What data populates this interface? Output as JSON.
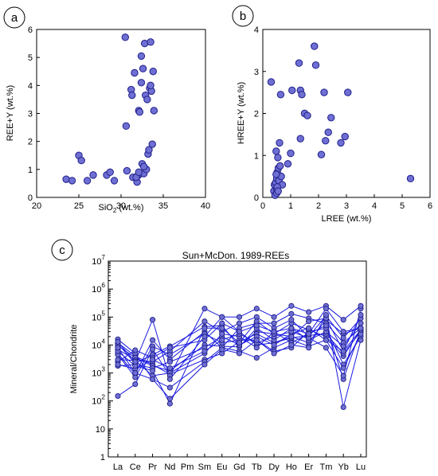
{
  "panels": {
    "a": {
      "badge": "a"
    },
    "b": {
      "badge": "b"
    },
    "c": {
      "badge": "c"
    }
  },
  "chart_data": [
    {
      "id": "a",
      "type": "scatter",
      "title": "",
      "xlabel": "SiO",
      "xlabel_sub": "2",
      "xlabel_suffix": " (wt.%)",
      "ylabel": "REE+Y (wt.%)",
      "xlim": [
        20,
        40
      ],
      "ylim": [
        0,
        6
      ],
      "xticks": [
        20,
        25,
        30,
        35,
        40
      ],
      "yticks": [
        0,
        1,
        2,
        3,
        4,
        5,
        6
      ],
      "grid": false,
      "x": [
        23.5,
        24.2,
        25.0,
        25.3,
        26.0,
        26.7,
        28.3,
        28.7,
        29.2,
        30.5,
        30.6,
        30.7,
        31.2,
        31.3,
        31.4,
        31.6,
        31.9,
        32.0,
        32.1,
        32.2,
        32.3,
        32.4,
        32.5,
        32.6,
        32.7,
        32.8,
        32.9,
        33.0,
        33.1,
        33.2,
        33.3,
        33.4,
        33.5,
        33.6,
        33.7,
        33.8,
        33.9,
        32.4,
        32.7,
        33.5,
        31.8,
        32.1
      ],
      "y": [
        0.65,
        0.6,
        1.5,
        1.32,
        0.6,
        0.8,
        0.8,
        0.9,
        0.6,
        5.72,
        2.55,
        0.95,
        3.85,
        3.65,
        0.72,
        4.45,
        0.55,
        0.78,
        3.1,
        3.05,
        0.85,
        5.05,
        1.2,
        4.6,
        0.85,
        5.5,
        3.65,
        1.0,
        3.5,
        1.55,
        1.7,
        3.9,
        5.55,
        3.8,
        1.9,
        4.5,
        3.1,
        4.1,
        1.1,
        4.0,
        0.72,
        0.9
      ]
    },
    {
      "id": "b",
      "type": "scatter",
      "title": "",
      "xlabel": "LREE (wt.%)",
      "ylabel": "HREE+Y (wt.%)",
      "xlim": [
        0,
        6
      ],
      "ylim": [
        0,
        4
      ],
      "xticks": [
        0,
        1,
        2,
        3,
        4,
        5,
        6
      ],
      "yticks": [
        0,
        1,
        2,
        3,
        4
      ],
      "grid": false,
      "x": [
        0.3,
        0.4,
        0.42,
        0.44,
        0.46,
        0.48,
        0.5,
        0.5,
        0.5,
        0.52,
        0.54,
        0.56,
        0.58,
        0.6,
        0.62,
        0.64,
        0.66,
        0.7,
        0.52,
        0.48,
        0.55,
        0.9,
        1.0,
        1.05,
        1.3,
        1.35,
        1.4,
        1.5,
        1.6,
        1.85,
        1.9,
        2.1,
        2.2,
        2.25,
        2.35,
        2.45,
        2.8,
        2.95,
        3.05,
        5.3,
        1.35
      ],
      "y": [
        2.75,
        0.15,
        0.3,
        0.05,
        0.35,
        1.1,
        0.2,
        0.45,
        0.1,
        0.6,
        0.95,
        0.7,
        0.4,
        1.3,
        0.75,
        2.45,
        0.5,
        0.3,
        0.25,
        0.55,
        0.15,
        0.8,
        1.05,
        2.55,
        3.2,
        2.55,
        2.45,
        2.0,
        1.95,
        3.6,
        3.15,
        1.02,
        2.5,
        1.35,
        1.55,
        1.9,
        1.3,
        1.45,
        2.5,
        0.45,
        1.4
      ]
    },
    {
      "id": "c",
      "type": "line",
      "title": "Sun+McDon. 1989-REEs",
      "xlabel": "",
      "ylabel": "Mineral/Chondrite",
      "yscale": "log",
      "ylim": [
        1,
        10000000
      ],
      "yticks": [
        {
          "base": "10",
          "exp": "7",
          "value": 10000000
        },
        {
          "base": "10",
          "exp": "6",
          "value": 1000000
        },
        {
          "base": "10",
          "exp": "5",
          "value": 100000
        },
        {
          "base": "10",
          "exp": "4",
          "value": 10000
        },
        {
          "base": "10",
          "exp": "3",
          "value": 1000
        },
        {
          "base": "10",
          "exp": "2",
          "value": 100
        },
        {
          "base": "10",
          "exp": "",
          "value": 10
        },
        {
          "base": "1",
          "exp": "",
          "value": 1
        }
      ],
      "categories": [
        "La",
        "Ce",
        "Pr",
        "Nd",
        "Pm",
        "Sm",
        "Eu",
        "Gd",
        "Tb",
        "Dy",
        "Ho",
        "Er",
        "Tm",
        "Yb",
        "Lu"
      ],
      "grid": false,
      "series": [
        {
          "values": [
            11000,
            2200,
            4500,
            9000,
            null,
            45000,
            50000,
            9000,
            30000,
            25000,
            60000,
            35000,
            20000,
            4000,
            35000
          ]
        },
        {
          "values": [
            12000,
            4000,
            2000,
            900,
            null,
            3000,
            5000,
            13000,
            25000,
            12000,
            20000,
            12000,
            80000,
            25000,
            40000
          ]
        },
        {
          "values": [
            16000,
            5000,
            600,
            300,
            null,
            2500,
            8000,
            6000,
            3500,
            8000,
            15000,
            9000,
            15000,
            6000,
            35000
          ]
        },
        {
          "values": [
            7000,
            3000,
            2500,
            6000,
            null,
            70000,
            30000,
            60000,
            100000,
            40000,
            80000,
            20000,
            110000,
            18000,
            90000
          ]
        },
        {
          "values": [
            5000,
            900,
            15000,
            3000,
            null,
            30000,
            8000,
            40000,
            60000,
            60000,
            130000,
            90000,
            60000,
            12000,
            40000
          ]
        },
        {
          "values": [
            2500,
            6500,
            3500,
            8000,
            null,
            15000,
            60000,
            30000,
            10000,
            12000,
            18000,
            22000,
            25000,
            5000,
            30000
          ]
        },
        {
          "values": [
            9500,
            3500,
            1800,
            1200,
            null,
            10000,
            9000,
            8500,
            40000,
            15000,
            40000,
            15000,
            30000,
            9000,
            60000
          ]
        },
        {
          "values": [
            4500,
            700,
            9000,
            4500,
            null,
            25000,
            12000,
            15000,
            15000,
            6000,
            8000,
            30000,
            40000,
            2000,
            20000
          ]
        },
        {
          "values": [
            1800,
            2000,
            1500,
            2500,
            null,
            8000,
            20000,
            10000,
            20000,
            10000,
            25000,
            40000,
            15000,
            1500,
            25000
          ]
        },
        {
          "values": [
            3000,
            2800,
            800,
            1000,
            null,
            5000,
            25000,
            20000,
            8000,
            30000,
            12000,
            25000,
            50000,
            600,
            35000
          ]
        },
        {
          "values": [
            2000,
            1400,
            3000,
            1500,
            null,
            6000,
            15000,
            25000,
            12000,
            20000,
            30000,
            18000,
            8000,
            800,
            200000
          ]
        },
        {
          "values": [
            6000,
            1800,
            1200,
            80,
            null,
            40000,
            40000,
            12000,
            70000,
            25000,
            20000,
            70000,
            90000,
            6000,
            120000
          ]
        },
        {
          "values": [
            8000,
            1000,
            600,
            120,
            null,
            2000,
            7000,
            5000,
            15000,
            5000,
            10000,
            8000,
            120000,
            60,
            15000
          ]
        },
        {
          "values": [
            150,
            400,
            7000,
            800,
            null,
            200000,
            100000,
            100000,
            200000,
            100000,
            250000,
            150000,
            250000,
            80000,
            250000
          ]
        },
        {
          "values": [
            13000,
            2500,
            80000,
            600,
            null,
            20000,
            100000,
            30000,
            50000,
            30000,
            40000,
            25000,
            200000,
            30000,
            40000
          ]
        }
      ]
    }
  ]
}
